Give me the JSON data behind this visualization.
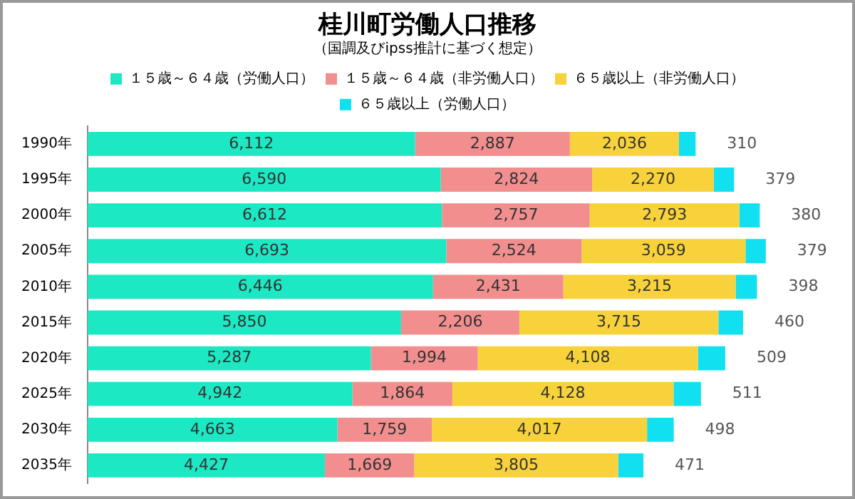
{
  "chart_data": {
    "type": "bar",
    "orientation": "horizontal",
    "stacked": true,
    "title": "桂川町労働人口推移",
    "subtitle": "（国調及びipss推計に基づく想定）",
    "categories": [
      "1990年",
      "1995年",
      "2000年",
      "2005年",
      "2010年",
      "2015年",
      "2020年",
      "2025年",
      "2030年",
      "2035年"
    ],
    "series": [
      {
        "name": "１５歳～６４歳（労働人口）",
        "color": "#1de8c4",
        "values": [
          6112,
          6590,
          6612,
          6693,
          6446,
          5850,
          5287,
          4942,
          4663,
          4427
        ],
        "value_labels": [
          "6,112",
          "6,590",
          "6,612",
          "6,693",
          "6,446",
          "5,850",
          "5,287",
          "4,942",
          "4,663",
          "4,427"
        ]
      },
      {
        "name": "１５歳～６４歳（非労働人口）",
        "color": "#f28e8e",
        "values": [
          2887,
          2824,
          2757,
          2524,
          2431,
          2206,
          1994,
          1864,
          1759,
          1669
        ],
        "value_labels": [
          "2,887",
          "2,824",
          "2,757",
          "2,524",
          "2,431",
          "2,206",
          "1,994",
          "1,864",
          "1,759",
          "1,669"
        ]
      },
      {
        "name": "６５歳以上（非労働人口）",
        "color": "#f8d23a",
        "values": [
          2036,
          2270,
          2793,
          3059,
          3215,
          3715,
          4108,
          4128,
          4017,
          3805
        ],
        "value_labels": [
          "2,036",
          "2,270",
          "2,793",
          "3,059",
          "3,215",
          "3,715",
          "4,108",
          "4,128",
          "4,017",
          "3,805"
        ]
      },
      {
        "name": "６５歳以上（労働人口）",
        "color": "#10e0f0",
        "values": [
          310,
          379,
          380,
          379,
          398,
          460,
          509,
          511,
          498,
          471
        ],
        "value_labels": [
          "310",
          "379",
          "380",
          "379",
          "398",
          "460",
          "509",
          "511",
          "498",
          "471"
        ]
      }
    ],
    "legend": "top",
    "grid": false
  }
}
